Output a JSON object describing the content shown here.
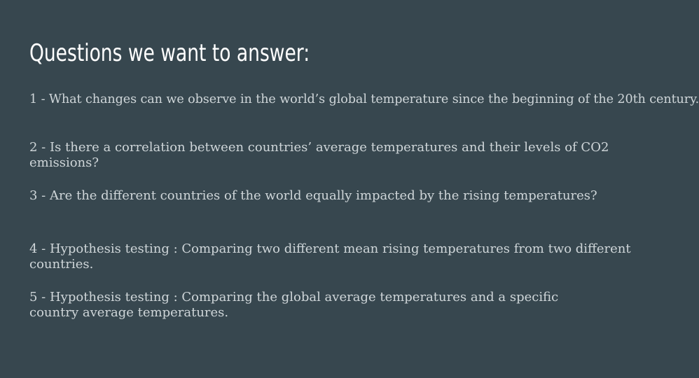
{
  "slide": {
    "title": "Questions we want to answer:",
    "questions": [
      "1 - What changes can we observe in the world’s global temperature since the beginning of the 20th century.",
      "2 - Is there a correlation between countries’ average temperatures and their levels of CO2 emissions?",
      "3 - Are the different countries of the world equally impacted by the rising temperatures?",
      "4 - Hypothesis testing : Comparing two different mean rising temperatures from two different countries.",
      "5 - Hypothesis testing : Comparing the global average temperatures and a specific country average temperatures."
    ]
  },
  "colors": {
    "background": "#37474f",
    "title": "#ffffff",
    "body_text": "#cfd6d9"
  }
}
